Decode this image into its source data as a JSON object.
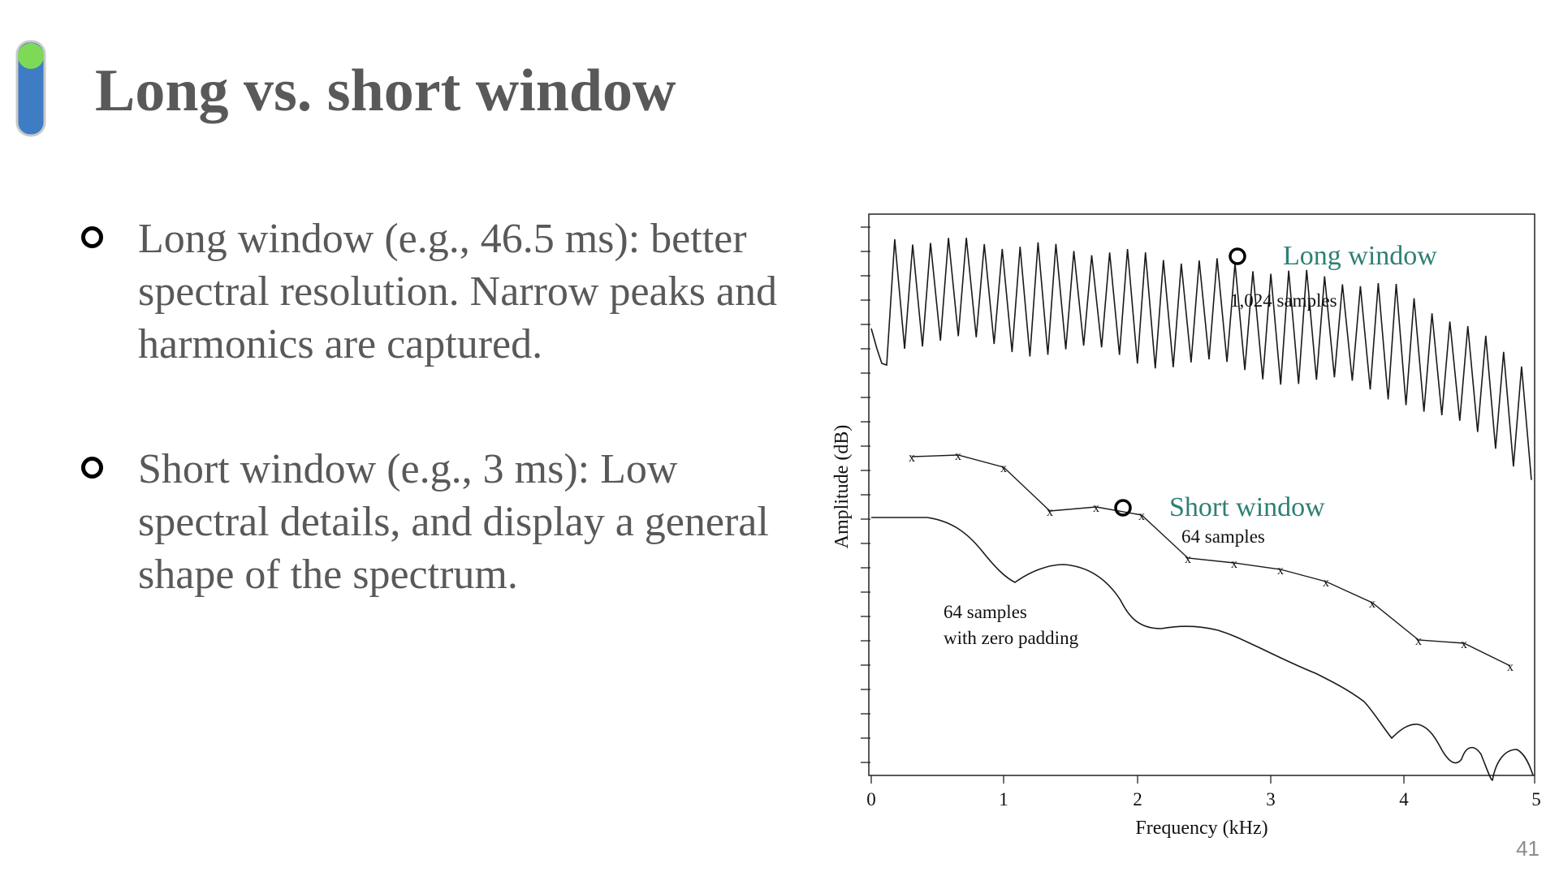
{
  "slide": {
    "title": "Long vs. short window",
    "page_number": "41",
    "accent_colors": {
      "bar": "#3e7cc4",
      "knob": "#7ed957",
      "outline": "#c9c9c9"
    },
    "text_color": "#595959"
  },
  "bullets": [
    {
      "text": "Long window (e.g., 46.5 ms): better spectral resolution. Narrow peaks and harmonics are captured.",
      "marker": "circle-outline-icon"
    },
    {
      "text": "Short window (e.g., 3 ms): Low spectral details, and display a general shape of the spectrum.",
      "marker": "circle-outline-icon"
    }
  ],
  "figure": {
    "xlabel": "Frequency (kHz)",
    "ylabel": "Amplitude (dB)",
    "x_ticks": [
      "0",
      "1",
      "2",
      "3",
      "4",
      "5"
    ],
    "legend": {
      "long": {
        "label": "Long window",
        "sub": "1,024 samples",
        "color": "#2e7f74"
      },
      "short": {
        "label": "Short window",
        "sub": "64 samples",
        "color": "#2e7f74"
      }
    },
    "annotation": {
      "line1": "64 samples",
      "line2": "with zero padding"
    },
    "marker_icon": "x-marker-icon"
  }
}
